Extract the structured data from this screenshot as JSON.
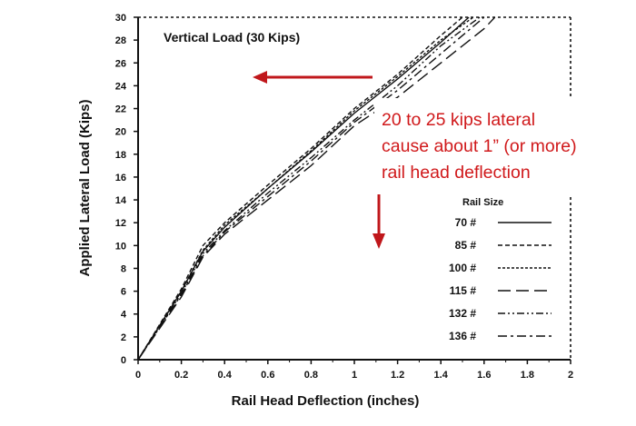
{
  "chart_data": {
    "type": "line",
    "xlabel": "Rail Head Deflection (inches)",
    "ylabel": "Applied Lateral Load (Kips)",
    "xlim": [
      0,
      2
    ],
    "ylim": [
      0,
      30
    ],
    "xticks": [
      "0",
      "0.2",
      "0.4",
      "0.6",
      "0.8",
      "1",
      "1.2",
      "1.4",
      "1.6",
      "1.8",
      "2"
    ],
    "yticks": [
      "0",
      "2",
      "4",
      "6",
      "8",
      "10",
      "12",
      "14",
      "16",
      "18",
      "20",
      "22",
      "24",
      "26",
      "28",
      "30"
    ],
    "annotation": "Vertical Load (30 Kips)",
    "legend_title": "Rail Size",
    "legend_position": "right",
    "series": [
      {
        "name": "70 #",
        "style": "solid",
        "x": [
          0,
          0.2,
          0.3,
          0.4,
          0.6,
          0.8,
          1.0,
          1.2,
          1.4,
          1.53
        ],
        "y": [
          0,
          6,
          9.5,
          11.6,
          15,
          18.2,
          21.6,
          24.6,
          27.8,
          30
        ]
      },
      {
        "name": "85 #",
        "style": "short-dash",
        "x": [
          0,
          0.2,
          0.3,
          0.4,
          0.6,
          0.8,
          1.0,
          1.2,
          1.4,
          1.5
        ],
        "y": [
          0,
          6.2,
          10,
          12,
          15.3,
          18.5,
          22,
          25,
          28.4,
          30
        ]
      },
      {
        "name": "100 #",
        "style": "dotted",
        "x": [
          0,
          0.2,
          0.3,
          0.4,
          0.6,
          0.8,
          1.0,
          1.2,
          1.4,
          1.55
        ],
        "y": [
          0,
          6,
          9.6,
          11.8,
          15,
          18.3,
          21.8,
          24.8,
          28,
          30
        ]
      },
      {
        "name": "115 #",
        "style": "long-dash",
        "x": [
          0,
          0.2,
          0.3,
          0.4,
          0.6,
          0.8,
          1.0,
          1.2,
          1.4,
          1.6,
          1.65
        ],
        "y": [
          0,
          5.5,
          9,
          11,
          14,
          17,
          20.5,
          23,
          26,
          29,
          30
        ]
      },
      {
        "name": "132 #",
        "style": "dash-dot-dot",
        "x": [
          0,
          0.2,
          0.3,
          0.4,
          0.6,
          0.8,
          1.0,
          1.2,
          1.4,
          1.58
        ],
        "y": [
          0,
          5.8,
          9.3,
          11.3,
          14.6,
          17.7,
          21,
          24,
          27.5,
          30
        ]
      },
      {
        "name": "136 #",
        "style": "dash-dot",
        "x": [
          0,
          0.2,
          0.3,
          0.4,
          0.6,
          0.8,
          1.0,
          1.2,
          1.4,
          1.6
        ],
        "y": [
          0,
          5.7,
          9.1,
          11.2,
          14.3,
          17.4,
          20.8,
          23.6,
          26.8,
          30
        ]
      }
    ]
  },
  "callout": {
    "lines": [
      "20 to 25 kips lateral",
      "cause about 1” (or more)",
      "rail head deflection"
    ],
    "color": "#d0191b"
  },
  "arrows": {
    "color": "#c0171b"
  }
}
